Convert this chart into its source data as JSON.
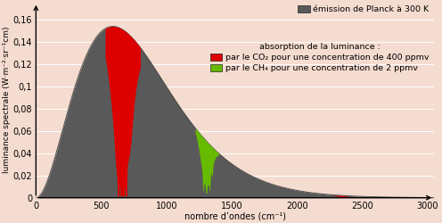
{
  "background_color": "#f5dcd0",
  "planck_color": "#595959",
  "co2_color": "#dd0000",
  "ch4_color": "#66bb00",
  "ylabel": "luminance spectrale (W·m⁻²·sr⁻¹cm)",
  "xlabel": "nombre d’ondes (cm⁻¹)",
  "ylim": [
    0,
    0.175
  ],
  "xlim": [
    0,
    3050
  ],
  "yticks": [
    0,
    0.02,
    0.04,
    0.06,
    0.08,
    0.1,
    0.12,
    0.14,
    0.16
  ],
  "xticks": [
    0,
    500,
    1000,
    1500,
    2000,
    2500,
    3000
  ],
  "legend_planck": "émission de Planck à 300 K",
  "legend_absorption": "absorption de la luminance :",
  "legend_co2": "par le CO₂ pour une concentration de 400 ppmv",
  "legend_ch4": "par le CH₄ pour une concentration de 2 ppmv",
  "T": 300,
  "wavenumber_max": 3050,
  "figsize": [
    4.96,
    2.5
  ],
  "dpi": 100
}
